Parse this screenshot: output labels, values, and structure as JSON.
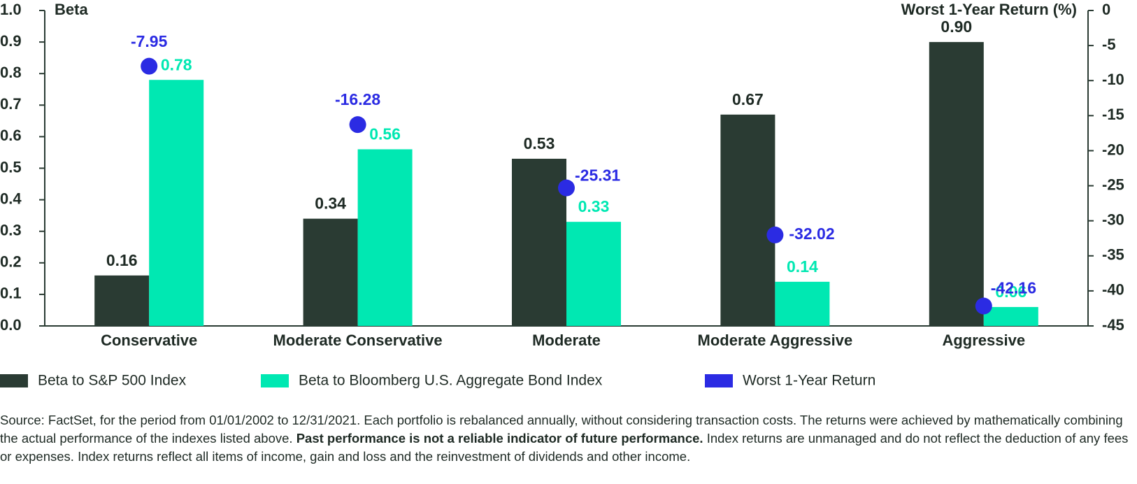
{
  "chart_data": {
    "type": "bar",
    "y_label": "Beta",
    "y2_label": "Worst 1-Year Return (%)",
    "categories": [
      "Conservative",
      "Moderate Conservative",
      "Moderate",
      "Moderate Aggressive",
      "Aggressive"
    ],
    "series": [
      {
        "name": "Beta to S&P 500 Index",
        "color": "#2a3b33",
        "values": [
          0.16,
          0.34,
          0.53,
          0.67,
          0.9
        ],
        "value_labels": [
          "0.16",
          "0.34",
          "0.53",
          "0.67",
          "0.90"
        ]
      },
      {
        "name": "Beta to Bloomberg U.S. Aggregate Bond Index",
        "color": "#00e8b2",
        "values": [
          0.78,
          0.56,
          0.33,
          0.14,
          0.06
        ]
      },
      {
        "name": "Worst 1-Year Return",
        "color": "#2b2be3",
        "axis": "y2",
        "type": "scatter",
        "values": [
          -7.95,
          -16.28,
          -25.31,
          -32.02,
          -42.16
        ]
      }
    ],
    "ylim": [
      0,
      1
    ],
    "yticks": [
      {
        "value": 0,
        "label": "0.0"
      },
      0.1,
      0.2,
      0.3,
      0.4,
      0.5,
      0.6,
      0.7,
      0.8,
      0.9,
      {
        "value": 1,
        "label": "1.0"
      }
    ],
    "y2lim": [
      -45,
      0
    ],
    "y2ticks": [
      -45,
      -40,
      -35,
      -30,
      -25,
      -20,
      -15,
      -10,
      -5,
      0
    ]
  },
  "footnote": {
    "text_1": "Source: FactSet, for the period from 01/01/2002 to 12/31/2021. Each portfolio is rebalanced annually, without considering transaction costs. The returns were achieved by mathematically combining the actual performance of the indexes listed above.",
    "bold": "Past performance is not a reliable indicator of future performance.",
    "text_2": "Index returns are unmanaged and do not reflect the deduction of any fees or expenses. Index returns reflect all items of income, gain and loss and the reinvestment of dividends and other income."
  }
}
